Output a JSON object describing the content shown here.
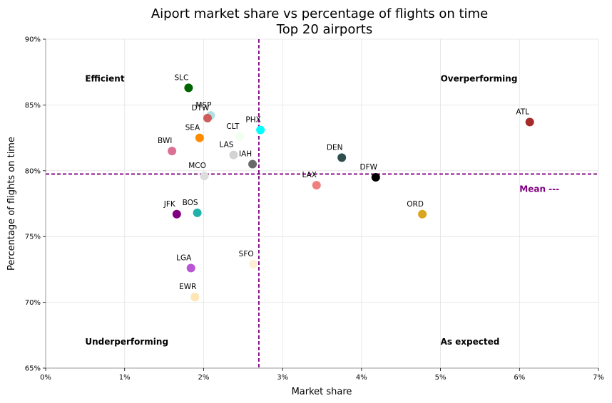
{
  "chart_data": {
    "type": "scatter",
    "title": "Aiport market share vs percentage of flights on time",
    "subtitle": "Top 20 airports",
    "xlabel": "Market share",
    "ylabel": "Percentage of flights on time",
    "xlim": [
      0,
      7
    ],
    "ylim": [
      65,
      90
    ],
    "xticks": [
      0,
      1,
      2,
      3,
      4,
      5,
      6,
      7
    ],
    "xtick_labels": [
      "0%",
      "1%",
      "2%",
      "3%",
      "4%",
      "5%",
      "6%",
      "7%"
    ],
    "yticks": [
      65,
      70,
      75,
      80,
      85,
      90
    ],
    "ytick_labels": [
      "65%",
      "70%",
      "75%",
      "80%",
      "85%",
      "90%"
    ],
    "grid": true,
    "mean_x": 2.7,
    "mean_y": 79.75,
    "mean_label": "Mean ---",
    "mean_color": "#800080",
    "quadrant_labels": [
      {
        "text": "Efficient",
        "x": 0.5,
        "y": 87
      },
      {
        "text": "Overperforming",
        "x": 5.0,
        "y": 87
      },
      {
        "text": "Underperforming",
        "x": 0.5,
        "y": 67
      },
      {
        "text": "As expected",
        "x": 5.0,
        "y": 67
      }
    ],
    "points": [
      {
        "label": "SLC",
        "x": 1.81,
        "y": 86.3,
        "color": "#006400"
      },
      {
        "label": "MSP",
        "x": 2.09,
        "y": 84.2,
        "color": "#b0e0e6"
      },
      {
        "label": "DTW",
        "x": 2.05,
        "y": 84.0,
        "color": "#cd5c5c"
      },
      {
        "label": "SEA",
        "x": 1.95,
        "y": 82.5,
        "color": "#ff8c00"
      },
      {
        "label": "CLT",
        "x": 2.46,
        "y": 82.6,
        "color": "#f0fff0"
      },
      {
        "label": "PHX",
        "x": 2.72,
        "y": 83.1,
        "color": "#00ffff"
      },
      {
        "label": "LAS",
        "x": 2.38,
        "y": 81.2,
        "color": "#d3d3d3"
      },
      {
        "label": "IAH",
        "x": 2.62,
        "y": 80.5,
        "color": "#696969"
      },
      {
        "label": "BWI",
        "x": 1.6,
        "y": 81.5,
        "color": "#db7093"
      },
      {
        "label": "MCO",
        "x": 2.01,
        "y": 79.6,
        "color": "#dcdcdc"
      },
      {
        "label": "DEN",
        "x": 3.75,
        "y": 81.0,
        "color": "#2f4f4f"
      },
      {
        "label": "DFW",
        "x": 4.18,
        "y": 79.5,
        "color": "#000000"
      },
      {
        "label": "LAX",
        "x": 3.43,
        "y": 78.9,
        "color": "#f08080"
      },
      {
        "label": "ATL",
        "x": 6.13,
        "y": 83.7,
        "color": "#a52a2a"
      },
      {
        "label": "ORD",
        "x": 4.77,
        "y": 76.7,
        "color": "#daa520"
      },
      {
        "label": "JFK",
        "x": 1.66,
        "y": 76.7,
        "color": "#800080"
      },
      {
        "label": "BOS",
        "x": 1.92,
        "y": 76.8,
        "color": "#20b2aa"
      },
      {
        "label": "LGA",
        "x": 1.84,
        "y": 72.6,
        "color": "#ba55d3"
      },
      {
        "label": "SFO",
        "x": 2.63,
        "y": 72.9,
        "color": "#ffefd5"
      },
      {
        "label": "EWR",
        "x": 1.89,
        "y": 70.4,
        "color": "#ffe4b5"
      }
    ]
  }
}
